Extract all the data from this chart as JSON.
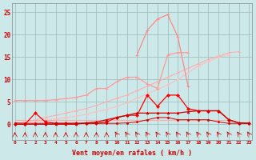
{
  "x": [
    0,
    1,
    2,
    3,
    4,
    5,
    6,
    7,
    8,
    9,
    10,
    11,
    12,
    13,
    14,
    15,
    16,
    17,
    18,
    19,
    20,
    21,
    22,
    23
  ],
  "line_bigpeak": [
    null,
    null,
    null,
    null,
    null,
    null,
    null,
    null,
    null,
    null,
    null,
    null,
    15.5,
    21.0,
    23.5,
    24.5,
    19.5,
    8.5,
    null,
    null,
    null,
    null,
    null,
    null
  ],
  "line_upper_arch": [
    5.3,
    5.3,
    5.3,
    5.3,
    5.5,
    5.7,
    6.0,
    6.5,
    8.0,
    8.0,
    9.5,
    10.5,
    10.5,
    9.0,
    8.0,
    15.5,
    16.0,
    16.0,
    null,
    null,
    null,
    null,
    null,
    null
  ],
  "line_slope_hi": [
    0.0,
    0.5,
    1.0,
    1.5,
    2.0,
    2.5,
    3.0,
    3.5,
    4.2,
    5.0,
    5.8,
    6.5,
    7.5,
    8.5,
    9.5,
    10.5,
    11.5,
    12.5,
    13.5,
    14.5,
    15.2,
    16.0,
    16.2,
    null
  ],
  "line_slope_lo": [
    0.0,
    0.3,
    0.6,
    0.9,
    1.2,
    1.5,
    1.8,
    2.2,
    2.8,
    3.3,
    4.0,
    4.8,
    5.8,
    6.8,
    7.8,
    8.8,
    10.0,
    11.5,
    13.0,
    14.0,
    15.0,
    15.5,
    null,
    null
  ],
  "line_low_flat": [
    1.0,
    1.0,
    1.0,
    1.0,
    1.0,
    1.0,
    1.0,
    1.0,
    1.0,
    1.0,
    1.0,
    1.0,
    1.0,
    1.0,
    1.0,
    1.0,
    1.0,
    1.0,
    1.0,
    1.0,
    1.0,
    1.0,
    null,
    null
  ],
  "line_med_peak": [
    0.0,
    0.0,
    2.5,
    0.5,
    0.2,
    0.2,
    0.2,
    0.2,
    0.2,
    0.5,
    1.5,
    2.0,
    2.0,
    6.5,
    4.0,
    6.5,
    6.5,
    3.5,
    3.0,
    3.0,
    3.0,
    1.0,
    0.3,
    0.2
  ],
  "line_dark_rise": [
    0.0,
    0.0,
    0.0,
    0.0,
    0.0,
    0.0,
    0.0,
    0.3,
    0.5,
    1.0,
    1.5,
    2.0,
    2.5,
    2.5,
    2.5,
    2.5,
    2.5,
    2.8,
    3.0,
    3.0,
    3.0,
    1.0,
    0.3,
    0.2
  ],
  "line_near_zero": [
    0.3,
    0.2,
    0.2,
    0.2,
    0.2,
    0.2,
    0.2,
    0.2,
    0.2,
    0.2,
    0.2,
    0.3,
    0.5,
    1.0,
    1.5,
    1.5,
    1.0,
    1.0,
    1.0,
    1.0,
    0.5,
    0.2,
    0.2,
    0.2
  ],
  "bg_color": "#cce8e8",
  "grid_color": "#99bbbb",
  "xlabel": "Vent moyen/en rafales ( km/h )",
  "ylabel_ticks": [
    0,
    5,
    10,
    15,
    20,
    25
  ],
  "xticks": [
    0,
    1,
    2,
    3,
    4,
    5,
    6,
    7,
    8,
    9,
    10,
    11,
    12,
    13,
    14,
    15,
    16,
    17,
    18,
    19,
    20,
    21,
    22,
    23
  ],
  "ylim": [
    -3.5,
    27
  ],
  "xlim": [
    -0.3,
    23.3
  ]
}
